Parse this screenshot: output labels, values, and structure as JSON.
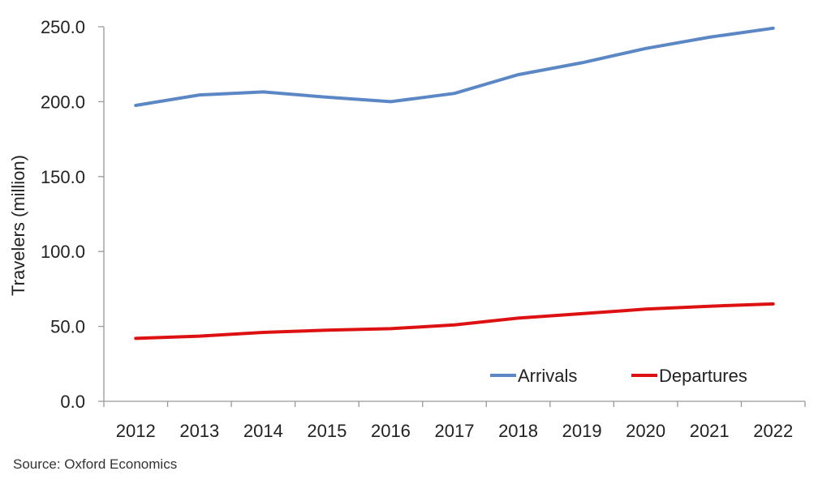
{
  "chart_data": {
    "type": "line",
    "categories": [
      "2012",
      "2013",
      "2014",
      "2015",
      "2016",
      "2017",
      "2018",
      "2019",
      "2020",
      "2021",
      "2022"
    ],
    "series": [
      {
        "name": "Arrivals",
        "color": "#5b87c5",
        "values": [
          197.5,
          204.5,
          206.5,
          203.0,
          200.0,
          205.5,
          218.0,
          226.0,
          235.5,
          243.0,
          249.0
        ]
      },
      {
        "name": "Departures",
        "color": "#dd1111",
        "values": [
          42.0,
          43.5,
          46.0,
          47.5,
          48.5,
          51.0,
          55.5,
          58.5,
          61.5,
          63.5,
          65.0
        ]
      }
    ],
    "ylabel": "Travelers (million)",
    "xlabel": "",
    "ylim": [
      0,
      250
    ],
    "yticks": [
      "0.0",
      "50.0",
      "100.0",
      "150.0",
      "200.0",
      "250.0"
    ],
    "grid": false,
    "legend_position": "bottom-right"
  },
  "source_note": "Source:  Oxford Economics"
}
